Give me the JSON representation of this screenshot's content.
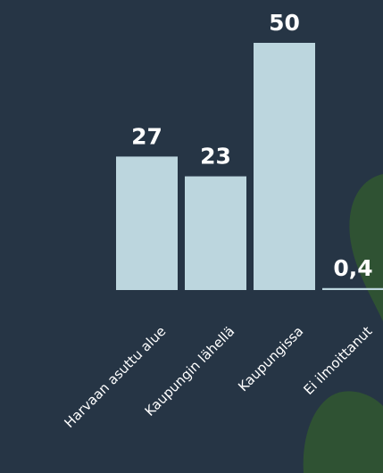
{
  "chart_data": {
    "type": "bar",
    "categories": [
      "Harvaan asuttu alue",
      "Kaupungin lähellä",
      "Kaupungissa",
      "Ei ilmoittanut"
    ],
    "values": [
      27,
      23,
      50,
      0.4
    ],
    "value_labels": [
      "27",
      "23",
      "50",
      "0,4"
    ],
    "color": "#bcd6de"
  }
}
